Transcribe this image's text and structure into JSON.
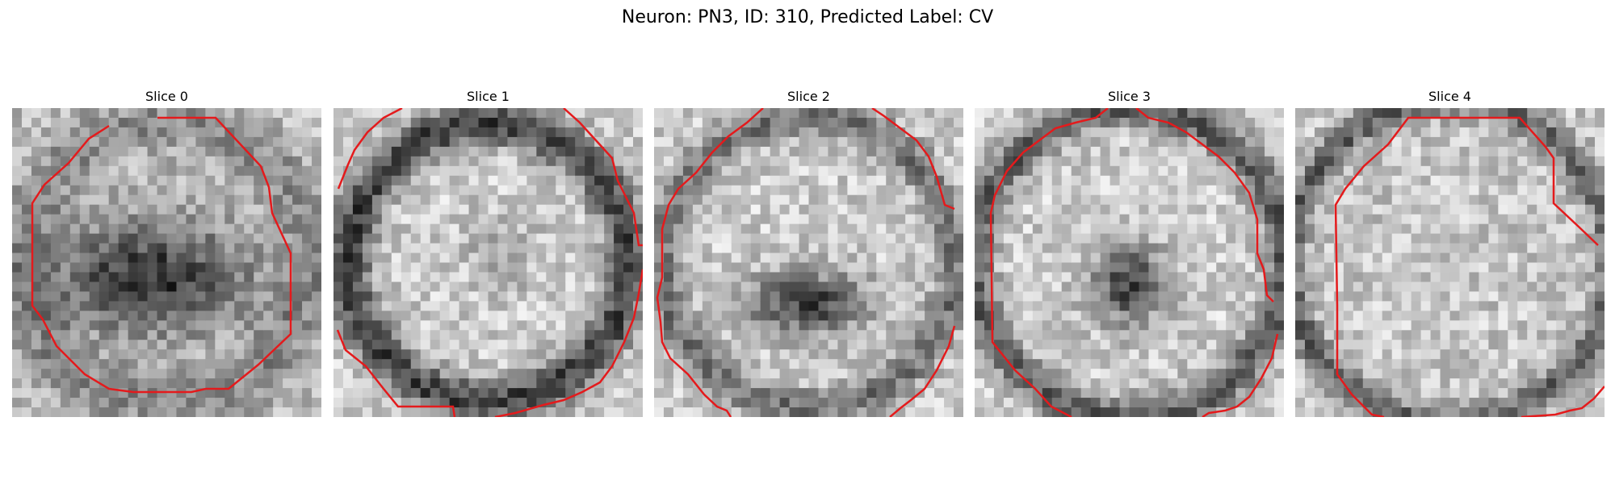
{
  "figure": {
    "title": "Neuron: PN3, ID: 310, Predicted Label: CV"
  },
  "slices": [
    {
      "label": "Slice 0",
      "contour_color": "#e41a1c"
    },
    {
      "label": "Slice 1",
      "contour_color": "#e41a1c"
    },
    {
      "label": "Slice 2",
      "contour_color": "#e41a1c"
    },
    {
      "label": "Slice 3",
      "contour_color": "#e41a1c"
    },
    {
      "label": "Slice 4",
      "contour_color": "#e41a1c"
    }
  ]
}
